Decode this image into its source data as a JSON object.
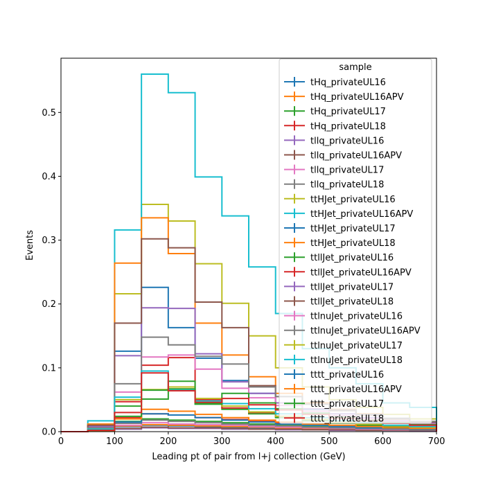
{
  "chart_data": {
    "type": "line",
    "drawstyle": "step-histogram",
    "title": "",
    "xlabel": "Leading pt of pair from l+j collection (GeV)",
    "ylabel": "Events",
    "xlim": [
      0,
      700
    ],
    "ylim": [
      0,
      0.585
    ],
    "xticks": [
      0,
      100,
      200,
      300,
      400,
      500,
      600,
      700
    ],
    "yticks": [
      0.0,
      0.1,
      0.2,
      0.3,
      0.4,
      0.5
    ],
    "ytick_labels": [
      "0.0",
      "0.1",
      "0.2",
      "0.3",
      "0.4",
      "0.5"
    ],
    "grid": false,
    "legend": {
      "title": "sample",
      "placement": "upper-right"
    },
    "bin_edges": [
      0,
      50,
      100,
      150,
      200,
      250,
      300,
      350,
      400,
      450,
      500,
      550,
      600,
      650,
      700
    ],
    "series": [
      {
        "name": "tHq_privateUL16",
        "color": "#1f77b4",
        "values": [
          0,
          0.002,
          0.008,
          0.01,
          0.009,
          0.008,
          0.007,
          0.006,
          0.005,
          0.004,
          0.003,
          0.003,
          0.002,
          0.002
        ]
      },
      {
        "name": "tHq_privateUL16APV",
        "color": "#ff7f0e",
        "values": [
          0,
          0.002,
          0.009,
          0.011,
          0.01,
          0.009,
          0.008,
          0.007,
          0.006,
          0.005,
          0.004,
          0.003,
          0.003,
          0.002
        ]
      },
      {
        "name": "tHq_privateUL17",
        "color": "#2ca02c",
        "values": [
          0,
          0.002,
          0.016,
          0.02,
          0.018,
          0.016,
          0.014,
          0.012,
          0.01,
          0.008,
          0.007,
          0.006,
          0.005,
          0.004
        ]
      },
      {
        "name": "tHq_privateUL18",
        "color": "#d62728",
        "values": [
          0,
          0.003,
          0.022,
          0.028,
          0.026,
          0.022,
          0.019,
          0.016,
          0.013,
          0.011,
          0.009,
          0.008,
          0.006,
          0.005
        ]
      },
      {
        "name": "tllq_privateUL16",
        "color": "#9467bd",
        "values": [
          0,
          0.001,
          0.004,
          0.006,
          0.005,
          0.005,
          0.004,
          0.004,
          0.003,
          0.003,
          0.002,
          0.002,
          0.002,
          0.001
        ]
      },
      {
        "name": "tllq_privateUL16APV",
        "color": "#8c564b",
        "values": [
          0,
          0.001,
          0.005,
          0.007,
          0.006,
          0.006,
          0.005,
          0.004,
          0.004,
          0.003,
          0.003,
          0.002,
          0.002,
          0.002
        ]
      },
      {
        "name": "tllq_privateUL17",
        "color": "#e377c2",
        "values": [
          0,
          0.002,
          0.01,
          0.014,
          0.012,
          0.011,
          0.01,
          0.008,
          0.007,
          0.006,
          0.005,
          0.004,
          0.003,
          0.003
        ]
      },
      {
        "name": "tllq_privateUL18",
        "color": "#7f7f7f",
        "values": [
          0,
          0.002,
          0.013,
          0.018,
          0.016,
          0.014,
          0.012,
          0.01,
          0.009,
          0.007,
          0.006,
          0.005,
          0.004,
          0.003
        ]
      },
      {
        "name": "ttHJet_privateUL16",
        "color": "#bcbd22",
        "values": [
          0,
          0.01,
          0.216,
          0.356,
          0.33,
          0.263,
          0.201,
          0.15,
          0.1,
          0.07,
          0.05,
          0.038,
          0.027,
          0.02
        ]
      },
      {
        "name": "ttHJet_privateUL16APV",
        "color": "#17becf",
        "values": [
          0,
          0.017,
          0.316,
          0.56,
          0.531,
          0.399,
          0.338,
          0.258,
          0.185,
          0.13,
          0.1,
          0.075,
          0.045,
          0.038
        ]
      },
      {
        "name": "ttHJet_privateUL17",
        "color": "#1f77b4",
        "values": [
          0,
          0.008,
          0.126,
          0.226,
          0.163,
          0.115,
          0.08,
          0.06,
          0.045,
          0.035,
          0.028,
          0.022,
          0.016,
          0.012
        ]
      },
      {
        "name": "ttHJet_privateUL18",
        "color": "#ff7f0e",
        "values": [
          0,
          0.012,
          0.264,
          0.335,
          0.279,
          0.17,
          0.12,
          0.086,
          0.06,
          0.045,
          0.035,
          0.028,
          0.02,
          0.016
        ]
      },
      {
        "name": "ttllJet_privateUL16",
        "color": "#2ca02c",
        "values": [
          0,
          0.004,
          0.04,
          0.051,
          0.067,
          0.045,
          0.035,
          0.028,
          0.022,
          0.017,
          0.013,
          0.01,
          0.008,
          0.006
        ]
      },
      {
        "name": "ttllJet_privateUL16APV",
        "color": "#d62728",
        "values": [
          0,
          0.006,
          0.047,
          0.104,
          0.116,
          0.05,
          0.037,
          0.03,
          0.024,
          0.019,
          0.015,
          0.012,
          0.009,
          0.007
        ]
      },
      {
        "name": "ttllJet_privateUL17",
        "color": "#9467bd",
        "values": [
          0,
          0.008,
          0.119,
          0.194,
          0.193,
          0.122,
          0.078,
          0.06,
          0.045,
          0.036,
          0.028,
          0.022,
          0.017,
          0.013
        ]
      },
      {
        "name": "ttllJet_privateUL18",
        "color": "#8c564b",
        "values": [
          0,
          0.01,
          0.17,
          0.302,
          0.288,
          0.203,
          0.163,
          0.072,
          0.055,
          0.043,
          0.033,
          0.026,
          0.02,
          0.015
        ]
      },
      {
        "name": "ttlnuJet_privateUL16",
        "color": "#e377c2",
        "values": [
          0,
          0.005,
          0.062,
          0.117,
          0.12,
          0.098,
          0.068,
          0.053,
          0.041,
          0.032,
          0.025,
          0.02,
          0.015,
          0.012
        ]
      },
      {
        "name": "ttlnuJet_privateUL16APV",
        "color": "#7f7f7f",
        "values": [
          0,
          0.006,
          0.075,
          0.148,
          0.136,
          0.118,
          0.106,
          0.07,
          0.055,
          0.043,
          0.034,
          0.027,
          0.021,
          0.016
        ]
      },
      {
        "name": "ttlnuJet_privateUL17",
        "color": "#bcbd22",
        "values": [
          0,
          0.004,
          0.05,
          0.066,
          0.07,
          0.052,
          0.04,
          0.031,
          0.024,
          0.019,
          0.015,
          0.012,
          0.009,
          0.007
        ]
      },
      {
        "name": "ttlnuJet_privateUL18",
        "color": "#17becf",
        "values": [
          0,
          0.004,
          0.054,
          0.095,
          0.065,
          0.048,
          0.044,
          0.036,
          0.028,
          0.022,
          0.017,
          0.014,
          0.01,
          0.008
        ]
      },
      {
        "name": "tttt_privateUL16",
        "color": "#1f77b4",
        "values": [
          0,
          0.001,
          0.015,
          0.028,
          0.026,
          0.022,
          0.018,
          0.015,
          0.012,
          0.01,
          0.008,
          0.006,
          0.005,
          0.004
        ]
      },
      {
        "name": "tttt_privateUL16APV",
        "color": "#ff7f0e",
        "values": [
          0,
          0.001,
          0.02,
          0.035,
          0.032,
          0.027,
          0.022,
          0.018,
          0.015,
          0.012,
          0.01,
          0.008,
          0.006,
          0.005
        ]
      },
      {
        "name": "tttt_privateUL17",
        "color": "#2ca02c",
        "values": [
          0,
          0.002,
          0.024,
          0.065,
          0.079,
          0.043,
          0.06,
          0.045,
          0.036,
          0.029,
          0.023,
          0.018,
          0.014,
          0.011
        ]
      },
      {
        "name": "tttt_privateUL18",
        "color": "#d62728",
        "values": [
          0,
          0.002,
          0.03,
          0.092,
          0.064,
          0.046,
          0.052,
          0.042,
          0.034,
          0.027,
          0.021,
          0.017,
          0.013,
          0.01
        ]
      }
    ]
  }
}
